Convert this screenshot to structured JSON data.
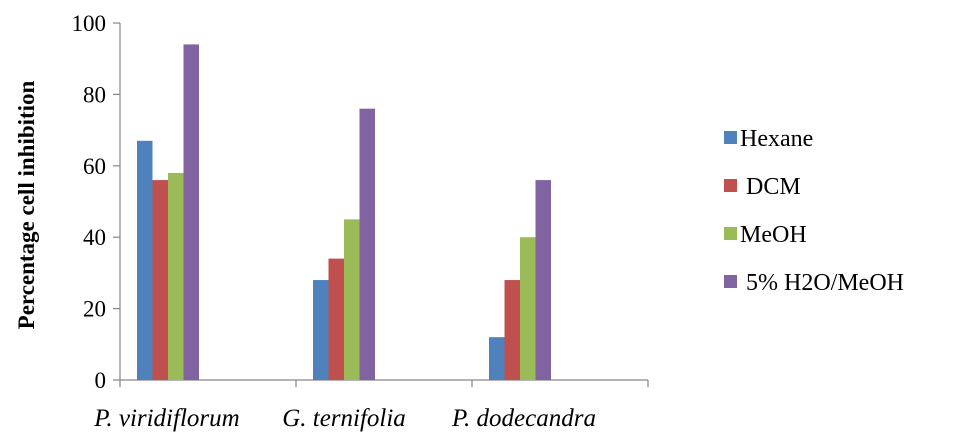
{
  "chart_data": {
    "type": "bar",
    "title": "",
    "xlabel": "",
    "ylabel": "Percentage cell inhibition",
    "ylim": [
      0,
      100
    ],
    "yticks": [
      0,
      20,
      40,
      60,
      80,
      100
    ],
    "categories": [
      "P. viridiflorum",
      "G. ternifolia",
      "P. dodecandra"
    ],
    "series": [
      {
        "name": "Hexane",
        "color": "#4f81bd",
        "values": [
          67,
          28,
          12
        ]
      },
      {
        "name": " DCM",
        "color": "#c0504d",
        "values": [
          56,
          34,
          28
        ]
      },
      {
        "name": "MeOH",
        "color": "#9bbb59",
        "values": [
          58,
          45,
          40
        ]
      },
      {
        "name": " 5% H2O/MeOH",
        "color": "#8064a2",
        "values": [
          94,
          76,
          56
        ]
      }
    ],
    "grid": false,
    "legend_position": "right"
  }
}
